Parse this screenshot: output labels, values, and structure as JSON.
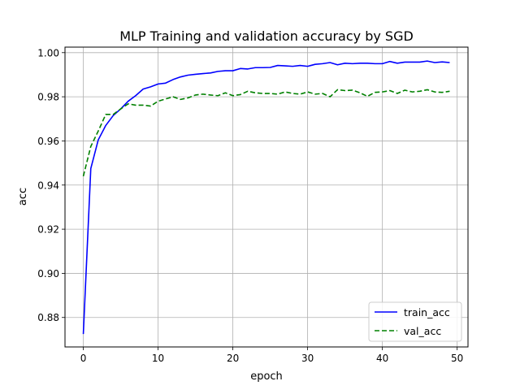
{
  "chart_data": {
    "type": "line",
    "title": "MLP Training and validation accuracy by SGD",
    "xlabel": "epoch",
    "ylabel": "acc",
    "xlim": [
      -2.45,
      51.45
    ],
    "ylim": [
      0.86665,
      1.0025
    ],
    "xticks": [
      0,
      10,
      20,
      30,
      40,
      50
    ],
    "xtick_labels": [
      "0",
      "10",
      "20",
      "30",
      "40",
      "50"
    ],
    "yticks": [
      0.88,
      0.9,
      0.92,
      0.94,
      0.96,
      0.98,
      1.0
    ],
    "ytick_labels": [
      "0.88",
      "0.90",
      "0.92",
      "0.94",
      "0.96",
      "0.98",
      "1.00"
    ],
    "grid": true,
    "legend_position": "lower right",
    "x": [
      0,
      1,
      2,
      3,
      4,
      5,
      6,
      7,
      8,
      9,
      10,
      11,
      12,
      13,
      14,
      15,
      16,
      17,
      18,
      19,
      20,
      21,
      22,
      23,
      24,
      25,
      26,
      27,
      28,
      29,
      30,
      31,
      32,
      33,
      34,
      35,
      36,
      37,
      38,
      39,
      40,
      41,
      42,
      43,
      44,
      45,
      46,
      47,
      48,
      49
    ],
    "series": [
      {
        "name": "train_acc",
        "color": "#0000ff",
        "style": "solid",
        "values": [
          0.8725,
          0.9475,
          0.9605,
          0.967,
          0.9715,
          0.9745,
          0.978,
          0.9805,
          0.9835,
          0.9845,
          0.9858,
          0.9862,
          0.9878,
          0.989,
          0.9898,
          0.9902,
          0.9905,
          0.9908,
          0.9915,
          0.9918,
          0.9918,
          0.9928,
          0.9926,
          0.9932,
          0.9932,
          0.9933,
          0.9942,
          0.994,
          0.9938,
          0.9942,
          0.9938,
          0.9947,
          0.995,
          0.9955,
          0.9945,
          0.9952,
          0.995,
          0.9952,
          0.9952,
          0.995,
          0.995,
          0.996,
          0.9952,
          0.9957,
          0.9957,
          0.9957,
          0.9962,
          0.9955,
          0.9958,
          0.9955
        ]
      },
      {
        "name": "val_acc",
        "color": "#008000",
        "style": "dashed",
        "values": [
          0.944,
          0.9575,
          0.9645,
          0.972,
          0.972,
          0.9745,
          0.9768,
          0.9762,
          0.9762,
          0.9758,
          0.978,
          0.979,
          0.98,
          0.9788,
          0.9795,
          0.9808,
          0.9812,
          0.9808,
          0.9805,
          0.9818,
          0.9805,
          0.981,
          0.9825,
          0.9818,
          0.9815,
          0.9815,
          0.9812,
          0.9822,
          0.9815,
          0.9812,
          0.9822,
          0.9812,
          0.9815,
          0.98,
          0.9832,
          0.9828,
          0.983,
          0.9818,
          0.9802,
          0.982,
          0.9822,
          0.9828,
          0.9815,
          0.983,
          0.9822,
          0.9825,
          0.9832,
          0.9822,
          0.982,
          0.9825
        ]
      }
    ]
  }
}
